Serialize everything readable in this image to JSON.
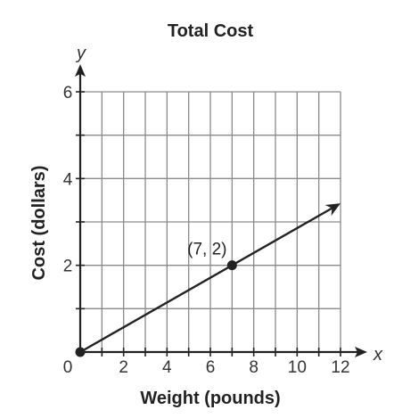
{
  "chart_data": {
    "type": "line",
    "title": "Total Cost",
    "xlabel": "Weight (pounds)",
    "ylabel": "Cost (dollars)",
    "x_var": "x",
    "y_var": "y",
    "origin_label": "0",
    "xlim": [
      0,
      12
    ],
    "ylim": [
      0,
      6
    ],
    "grid": true,
    "x_ticks": [
      2,
      4,
      6,
      8,
      10,
      12
    ],
    "y_ticks": [
      2,
      4,
      6
    ],
    "series": [
      {
        "x": [
          0,
          12
        ],
        "y": [
          0,
          3.4286
        ]
      }
    ],
    "highlight_point": {
      "x": 7,
      "y": 2,
      "label": "(7, 2)"
    }
  }
}
